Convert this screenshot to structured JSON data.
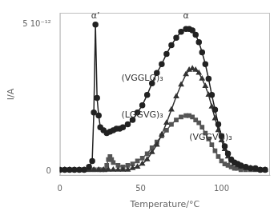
{
  "chart_data": {
    "type": "line",
    "x_label": "Temperature/°C",
    "y_label": "I/A",
    "xlim": [
      0,
      130
    ],
    "ylim": [
      -0.03,
      1.08
    ],
    "xticks": [
      0,
      50,
      100
    ],
    "yticks": [
      0,
      {
        "value": 1.0,
        "label": "5 10⁻¹²"
      }
    ],
    "grid": false,
    "series": [
      {
        "name": "(VGGLG)₃",
        "color": "#222222",
        "marker": "circle",
        "x": [
          0,
          3,
          6,
          9,
          12,
          15,
          18,
          20,
          21,
          22,
          23,
          24,
          25,
          27,
          29,
          31,
          33,
          35,
          37,
          39,
          42,
          45,
          48,
          51,
          54,
          57,
          60,
          63,
          66,
          69,
          72,
          75,
          78,
          80,
          82,
          84,
          86,
          88,
          90,
          92,
          94,
          96,
          98,
          100,
          102,
          104,
          106,
          108,
          110,
          112,
          115,
          118,
          121,
          124,
          127
        ],
        "values": [
          0.01,
          0.01,
          0.01,
          0.01,
          0.01,
          0.01,
          0.03,
          0.07,
          0.4,
          1.0,
          0.5,
          0.38,
          0.3,
          0.28,
          0.26,
          0.27,
          0.28,
          0.29,
          0.29,
          0.3,
          0.32,
          0.35,
          0.4,
          0.45,
          0.52,
          0.6,
          0.67,
          0.73,
          0.8,
          0.86,
          0.91,
          0.95,
          0.97,
          0.97,
          0.96,
          0.93,
          0.88,
          0.81,
          0.73,
          0.63,
          0.52,
          0.42,
          0.32,
          0.24,
          0.17,
          0.12,
          0.08,
          0.06,
          0.05,
          0.04,
          0.03,
          0.02,
          0.02,
          0.01,
          0.01
        ]
      },
      {
        "name": "(LGGVG)₃",
        "color": "#333333",
        "marker": "triangle",
        "x": [
          0,
          3,
          6,
          9,
          12,
          15,
          18,
          21,
          24,
          27,
          30,
          33,
          36,
          39,
          42,
          45,
          48,
          51,
          54,
          57,
          60,
          63,
          66,
          69,
          72,
          75,
          78,
          80,
          82,
          84,
          86,
          88,
          90,
          92,
          94,
          96,
          98,
          100,
          102,
          104,
          106,
          108,
          110,
          112,
          115,
          118,
          121,
          124,
          127
        ],
        "values": [
          0.01,
          0.01,
          0.01,
          0.01,
          0.01,
          0.01,
          0.01,
          0.01,
          0.01,
          0.01,
          0.01,
          0.01,
          0.01,
          0.01,
          0.01,
          0.02,
          0.03,
          0.05,
          0.08,
          0.13,
          0.18,
          0.25,
          0.33,
          0.42,
          0.51,
          0.59,
          0.66,
          0.69,
          0.7,
          0.69,
          0.67,
          0.63,
          0.58,
          0.52,
          0.44,
          0.36,
          0.28,
          0.21,
          0.15,
          0.1,
          0.07,
          0.05,
          0.04,
          0.03,
          0.02,
          0.02,
          0.01,
          0.01,
          0.01
        ]
      },
      {
        "name": "(VGGVG)₃",
        "color": "#555555",
        "marker": "square",
        "x": [
          0,
          3,
          6,
          9,
          12,
          15,
          18,
          21,
          24,
          26,
          28,
          29,
          30,
          31,
          32,
          33,
          36,
          39,
          42,
          45,
          48,
          51,
          54,
          57,
          60,
          63,
          66,
          69,
          72,
          75,
          78,
          80,
          82,
          84,
          86,
          88,
          90,
          92,
          94,
          96,
          98,
          100,
          102,
          104,
          106,
          108,
          110,
          112,
          115,
          118,
          121,
          124,
          127
        ],
        "values": [
          0.01,
          0.01,
          0.01,
          0.01,
          0.01,
          0.01,
          0.01,
          0.01,
          0.01,
          0.01,
          0.01,
          0.04,
          0.08,
          0.1,
          0.08,
          0.06,
          0.04,
          0.03,
          0.04,
          0.05,
          0.07,
          0.09,
          0.12,
          0.16,
          0.2,
          0.24,
          0.28,
          0.32,
          0.35,
          0.37,
          0.38,
          0.38,
          0.37,
          0.35,
          0.33,
          0.3,
          0.26,
          0.22,
          0.18,
          0.14,
          0.1,
          0.07,
          0.05,
          0.04,
          0.03,
          0.02,
          0.02,
          0.01,
          0.01,
          0.01,
          0.01,
          0.01,
          0.01
        ]
      }
    ],
    "annotations": [
      {
        "text": "α’",
        "x": 22,
        "y": 1.03
      },
      {
        "text": "α",
        "x": 78,
        "y": 1.03
      },
      {
        "text": "(VGGLG)₃",
        "x": 38,
        "y": 0.6
      },
      {
        "text": "(LGGVG)₃",
        "x": 38,
        "y": 0.35
      },
      {
        "text": "(VGGVG)₃",
        "x": 80,
        "y": 0.2
      }
    ]
  }
}
